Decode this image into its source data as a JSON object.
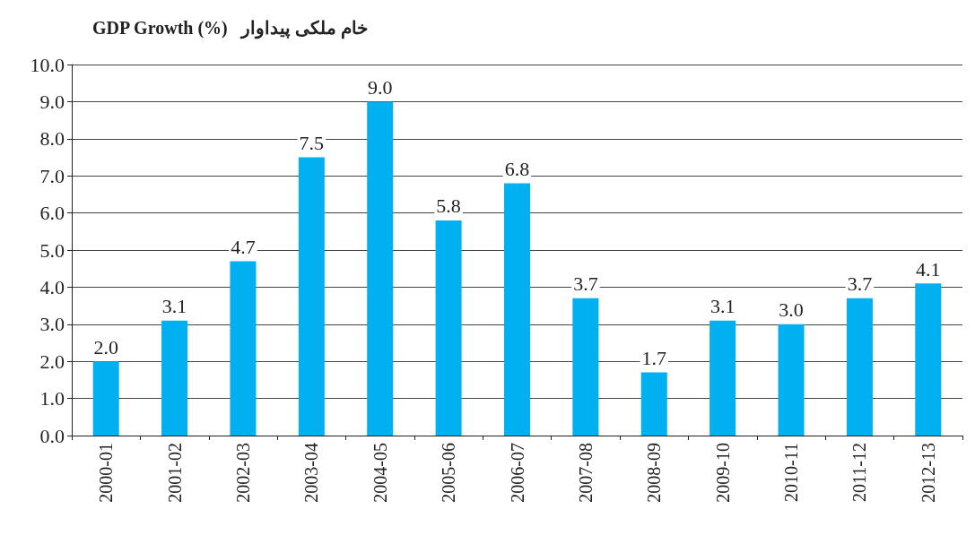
{
  "chart_data": {
    "type": "bar",
    "title": "GDP Growth (%)   خام ملکی پیداوار",
    "categories": [
      "2000-01",
      "2001-02",
      "2002-03",
      "2003-04",
      "2004-05",
      "2005-06",
      "2006-07",
      "2007-08",
      "2008-09",
      "2009-10",
      "2010-11",
      "2011-12",
      "2012-13"
    ],
    "values": [
      2.0,
      3.1,
      4.7,
      7.5,
      9.0,
      5.8,
      6.8,
      3.7,
      1.7,
      3.1,
      3.0,
      3.7,
      4.1
    ],
    "color": "#00b0f0",
    "ylim": [
      0,
      10
    ],
    "yticks": [
      {
        "value": 0,
        "label": "0.0"
      },
      {
        "value": 1,
        "label": "1.0"
      },
      {
        "value": 2,
        "label": "2.0"
      },
      {
        "value": 3,
        "label": "3.0"
      },
      {
        "value": 4,
        "label": "4.0"
      },
      {
        "value": 5,
        "label": "5.0"
      },
      {
        "value": 6,
        "label": "6.0"
      },
      {
        "value": 7,
        "label": "7.0"
      },
      {
        "value": 8,
        "label": "8.0"
      },
      {
        "value": 9,
        "label": "9.0"
      },
      {
        "value": 10,
        "label": "10.0"
      }
    ],
    "value_labels": [
      "2.0",
      "3.1",
      "4.7",
      "7.5",
      "9.0",
      "5.8",
      "6.8",
      "3.7",
      "1.7",
      "3.1",
      "3.0",
      "3.7",
      "4.1"
    ],
    "grid": "y"
  }
}
